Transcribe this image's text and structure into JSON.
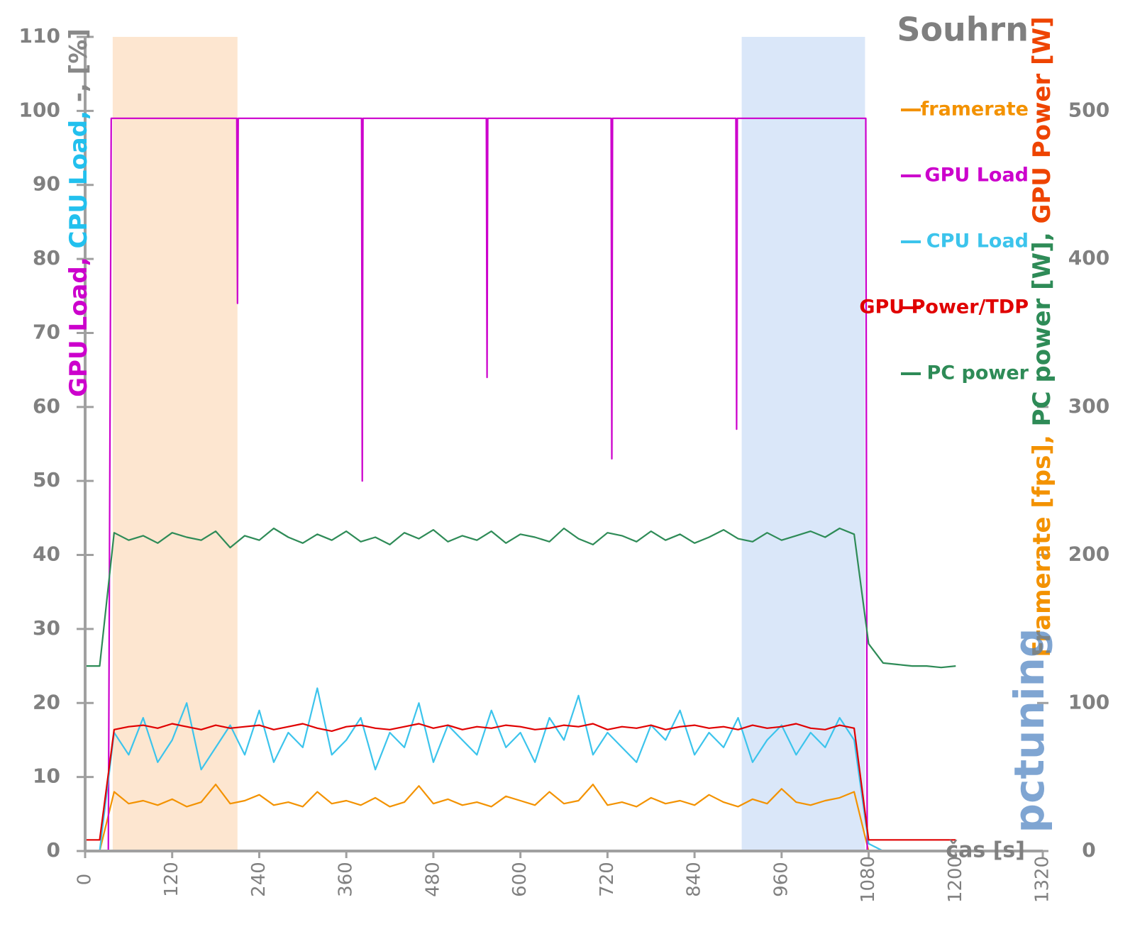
{
  "chart_data": {
    "type": "line",
    "title": "Souhrn",
    "xlabel": "čas [s]",
    "ylabel_parts": [
      {
        "text": "GPU Load,",
        "color": "#cc00cc"
      },
      {
        "text": " CPU Load,",
        "color": "#22c0ee"
      },
      {
        "text": " -, [%]",
        "color": "#888888"
      }
    ],
    "y2label_parts": [
      {
        "text": "Framerate [fps],",
        "color": "#f39200"
      },
      {
        "text": " PC power [W],",
        "color": "#2e8b57"
      },
      {
        "text": " GPU Power [W]",
        "color": "#ee4400"
      }
    ],
    "watermark": "pctuning",
    "grid": true,
    "xlim": [
      0,
      1320
    ],
    "xticks": [
      0,
      120,
      240,
      360,
      480,
      600,
      720,
      840,
      960,
      1080,
      1200,
      1320
    ],
    "ylim": [
      0,
      110
    ],
    "yticks": [
      0,
      10,
      20,
      30,
      40,
      50,
      60,
      70,
      80,
      90,
      100,
      110
    ],
    "y2lim": [
      0,
      550
    ],
    "y2ticks": [
      0,
      100,
      200,
      300,
      400,
      500
    ],
    "highlight_ranges": [
      {
        "from": 38,
        "to": 210,
        "color": "#fde2c8"
      },
      {
        "from": 905,
        "to": 1075,
        "color": "#d3e3f8"
      }
    ],
    "x": [
      0,
      20,
      40,
      60,
      80,
      100,
      120,
      140,
      160,
      180,
      200,
      220,
      240,
      260,
      280,
      300,
      320,
      340,
      360,
      380,
      400,
      420,
      440,
      460,
      480,
      500,
      520,
      540,
      560,
      580,
      600,
      620,
      640,
      660,
      680,
      700,
      720,
      740,
      760,
      780,
      800,
      820,
      840,
      860,
      880,
      900,
      920,
      940,
      960,
      980,
      1000,
      1020,
      1040,
      1060,
      1080,
      1100,
      1120,
      1140,
      1160,
      1180,
      1200
    ],
    "series": [
      {
        "name": "framerate",
        "color": "#f39200",
        "axis": "y2",
        "values": [
          0,
          0,
          40,
          32,
          34,
          31,
          35,
          30,
          33,
          45,
          32,
          34,
          38,
          31,
          33,
          30,
          40,
          32,
          34,
          31,
          36,
          30,
          33,
          44,
          32,
          35,
          31,
          33,
          30,
          37,
          34,
          31,
          40,
          32,
          34,
          45,
          31,
          33,
          30,
          36,
          32,
          34,
          31,
          38,
          33,
          30,
          35,
          32,
          42,
          33,
          31,
          34,
          36,
          40,
          0,
          0,
          0,
          0,
          0,
          0,
          0
        ]
      },
      {
        "name": "GPU Load",
        "color": "#cc00cc",
        "x": [
          0,
          32,
          36,
          209,
          210,
          211,
          381,
          382,
          383,
          553,
          554,
          555,
          725,
          726,
          727,
          897,
          898,
          899,
          1076,
          1078,
          1200
        ],
        "values": [
          0,
          0,
          99,
          99,
          74,
          99,
          99,
          50,
          99,
          99,
          64,
          99,
          99,
          53,
          99,
          99,
          57,
          99,
          99,
          0,
          0
        ]
      },
      {
        "name": "CPU Load",
        "color": "#3cc4ec",
        "values": [
          0,
          0,
          16,
          13,
          18,
          12,
          15,
          20,
          11,
          14,
          17,
          13,
          19,
          12,
          16,
          14,
          22,
          13,
          15,
          18,
          11,
          16,
          14,
          20,
          12,
          17,
          15,
          13,
          19,
          14,
          16,
          12,
          18,
          15,
          21,
          13,
          16,
          14,
          12,
          17,
          15,
          19,
          13,
          16,
          14,
          18,
          12,
          15,
          17,
          13,
          16,
          14,
          18,
          15,
          1,
          0,
          0,
          0,
          0,
          0,
          0
        ]
      },
      {
        "name": "GPU Power/TDP",
        "color": "#e00000",
        "axis": "y2",
        "values": [
          7.5,
          7.5,
          82,
          84,
          85,
          83,
          86,
          84,
          82,
          85,
          83,
          84,
          85,
          82,
          84,
          86,
          83,
          81,
          84,
          85,
          83,
          82,
          84,
          86,
          83,
          85,
          82,
          84,
          83,
          85,
          84,
          82,
          83,
          85,
          84,
          86,
          82,
          84,
          83,
          85,
          82,
          84,
          85,
          83,
          84,
          82,
          85,
          83,
          84,
          86,
          83,
          82,
          85,
          83,
          7.5,
          7.5,
          7.5,
          7.5,
          7.5,
          7.5,
          7.5
        ]
      },
      {
        "name": "PC power",
        "color": "#2e8b57",
        "axis": "y2",
        "values": [
          125,
          125,
          215,
          210,
          213,
          208,
          215,
          212,
          210,
          216,
          205,
          213,
          210,
          218,
          212,
          208,
          214,
          210,
          216,
          209,
          212,
          207,
          215,
          211,
          217,
          209,
          213,
          210,
          216,
          208,
          214,
          212,
          209,
          218,
          211,
          207,
          215,
          213,
          209,
          216,
          210,
          214,
          208,
          212,
          217,
          211,
          209,
          215,
          210,
          213,
          216,
          212,
          218,
          214,
          140,
          127,
          126,
          125,
          125,
          124,
          125
        ]
      }
    ]
  }
}
